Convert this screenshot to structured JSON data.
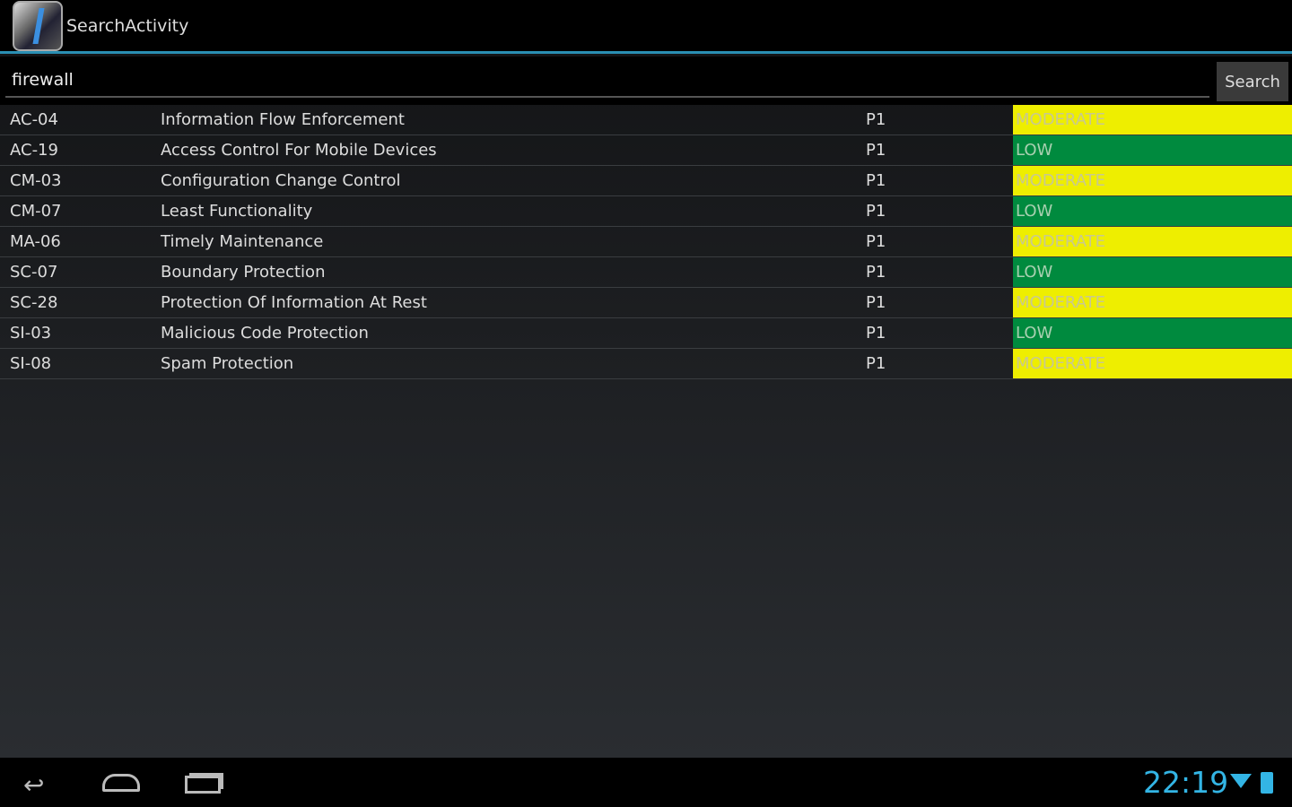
{
  "app": {
    "title": "SearchActivity"
  },
  "search": {
    "value": "firewall",
    "button": "Search"
  },
  "results": [
    {
      "id": "AC-04",
      "name": "Information Flow Enforcement",
      "priority": "P1",
      "baseline": "MODERATE"
    },
    {
      "id": "AC-19",
      "name": "Access Control For Mobile Devices",
      "priority": "P1",
      "baseline": "LOW"
    },
    {
      "id": "CM-03",
      "name": "Configuration Change Control",
      "priority": "P1",
      "baseline": "MODERATE"
    },
    {
      "id": "CM-07",
      "name": "Least Functionality",
      "priority": "P1",
      "baseline": "LOW"
    },
    {
      "id": "MA-06",
      "name": "Timely Maintenance",
      "priority": "P1",
      "baseline": "MODERATE"
    },
    {
      "id": "SC-07",
      "name": "Boundary Protection",
      "priority": "P1",
      "baseline": "LOW"
    },
    {
      "id": "SC-28",
      "name": "Protection Of Information At Rest",
      "priority": "P1",
      "baseline": "MODERATE"
    },
    {
      "id": "SI-03",
      "name": "Malicious Code Protection",
      "priority": "P1",
      "baseline": "LOW"
    },
    {
      "id": "SI-08",
      "name": "Spam Protection",
      "priority": "P1",
      "baseline": "MODERATE"
    }
  ],
  "colors": {
    "moderate": "#eeee00",
    "low": "#008a3e",
    "accent": "#33b5e5"
  },
  "status": {
    "time": "22:19"
  }
}
